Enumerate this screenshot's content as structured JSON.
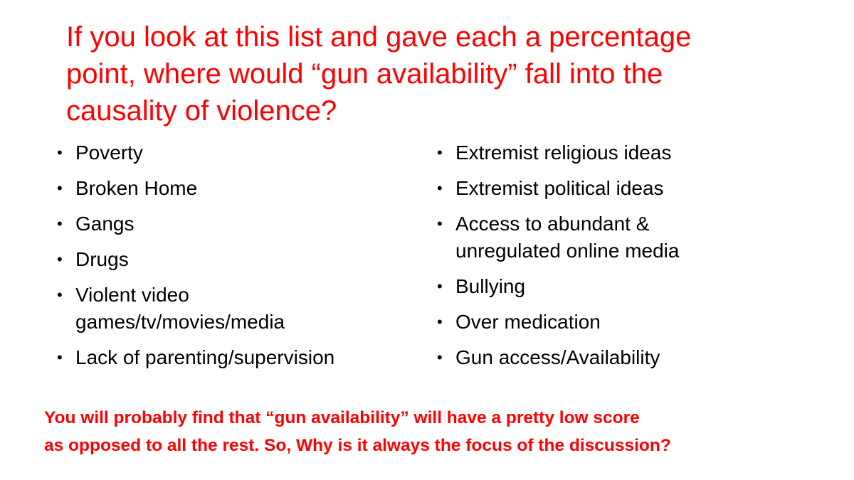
{
  "title": {
    "line1": "If you look at this list and gave each a percentage",
    "line2": "point, where would “gun availability” fall into the",
    "line3": "causality of violence?"
  },
  "bullet_glyph": "•",
  "left_list": [
    {
      "line1": "Poverty"
    },
    {
      "line1": "Broken Home"
    },
    {
      "line1": "Gangs"
    },
    {
      "line1": "Drugs"
    },
    {
      "line1": "Violent video",
      "line2": "games/tv/movies/media"
    },
    {
      "line1": "Lack of parenting/supervision"
    }
  ],
  "right_list": [
    {
      "line1": "Extremist religious ideas"
    },
    {
      "line1": "Extremist political ideas"
    },
    {
      "line1": "Access to abundant &",
      "line2": "unregulated online media"
    },
    {
      "line1": "Bullying"
    },
    {
      "line1": "Over medication"
    },
    {
      "line1": "Gun access/Availability"
    }
  ],
  "footer": {
    "line1": "You will probably find that “gun availability” will have a pretty low score",
    "line2": "as opposed to all the rest. So, Why is it always the focus of the discussion?"
  },
  "colors": {
    "title": "#ff0000",
    "footer": "#ff0000",
    "body_text": "#000000",
    "background": "#ffffff"
  }
}
